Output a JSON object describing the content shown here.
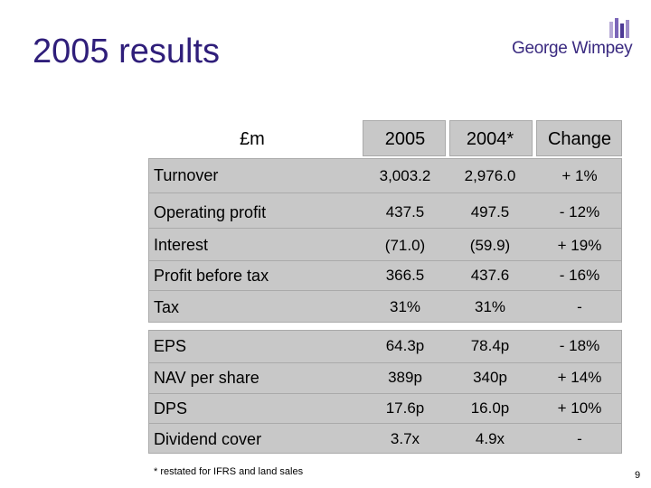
{
  "slide": {
    "title": "2005 results",
    "logo_text": "George Wimpey",
    "unit_label": "£m",
    "footnote": "* restated for IFRS and land sales",
    "page_number": "9"
  },
  "table": {
    "columns": [
      "2005",
      "2004*",
      "Change"
    ],
    "rows": [
      {
        "label": "Turnover",
        "v2005": "3,003.2",
        "v2004": "2,976.0",
        "change": "+ 1%"
      },
      {
        "label": "Operating profit",
        "v2005": "437.5",
        "v2004": "497.5",
        "change": "- 12%"
      },
      {
        "label": "Interest",
        "v2005": "(71.0)",
        "v2004": "(59.9)",
        "change": "+ 19%"
      },
      {
        "label": "Profit before tax",
        "v2005": "366.5",
        "v2004": "437.6",
        "change": "- 16%"
      },
      {
        "label": "Tax",
        "v2005": "31%",
        "v2004": "31%",
        "change": "-"
      },
      {
        "label": "EPS",
        "v2005": "64.3p",
        "v2004": "78.4p",
        "change": "- 18%"
      },
      {
        "label": "NAV per share",
        "v2005": "389p",
        "v2004": "340p",
        "change": "+ 14%"
      },
      {
        "label": "DPS",
        "v2005": "17.6p",
        "v2004": "16.0p",
        "change": "+ 10%"
      },
      {
        "label": "Dividend cover",
        "v2005": "3.7x",
        "v2004": "4.9x",
        "change": "-"
      }
    ]
  },
  "colors": {
    "title": "#2f1e7a",
    "band": "#c8c8c8",
    "logo_purple": "#3a2a80"
  }
}
